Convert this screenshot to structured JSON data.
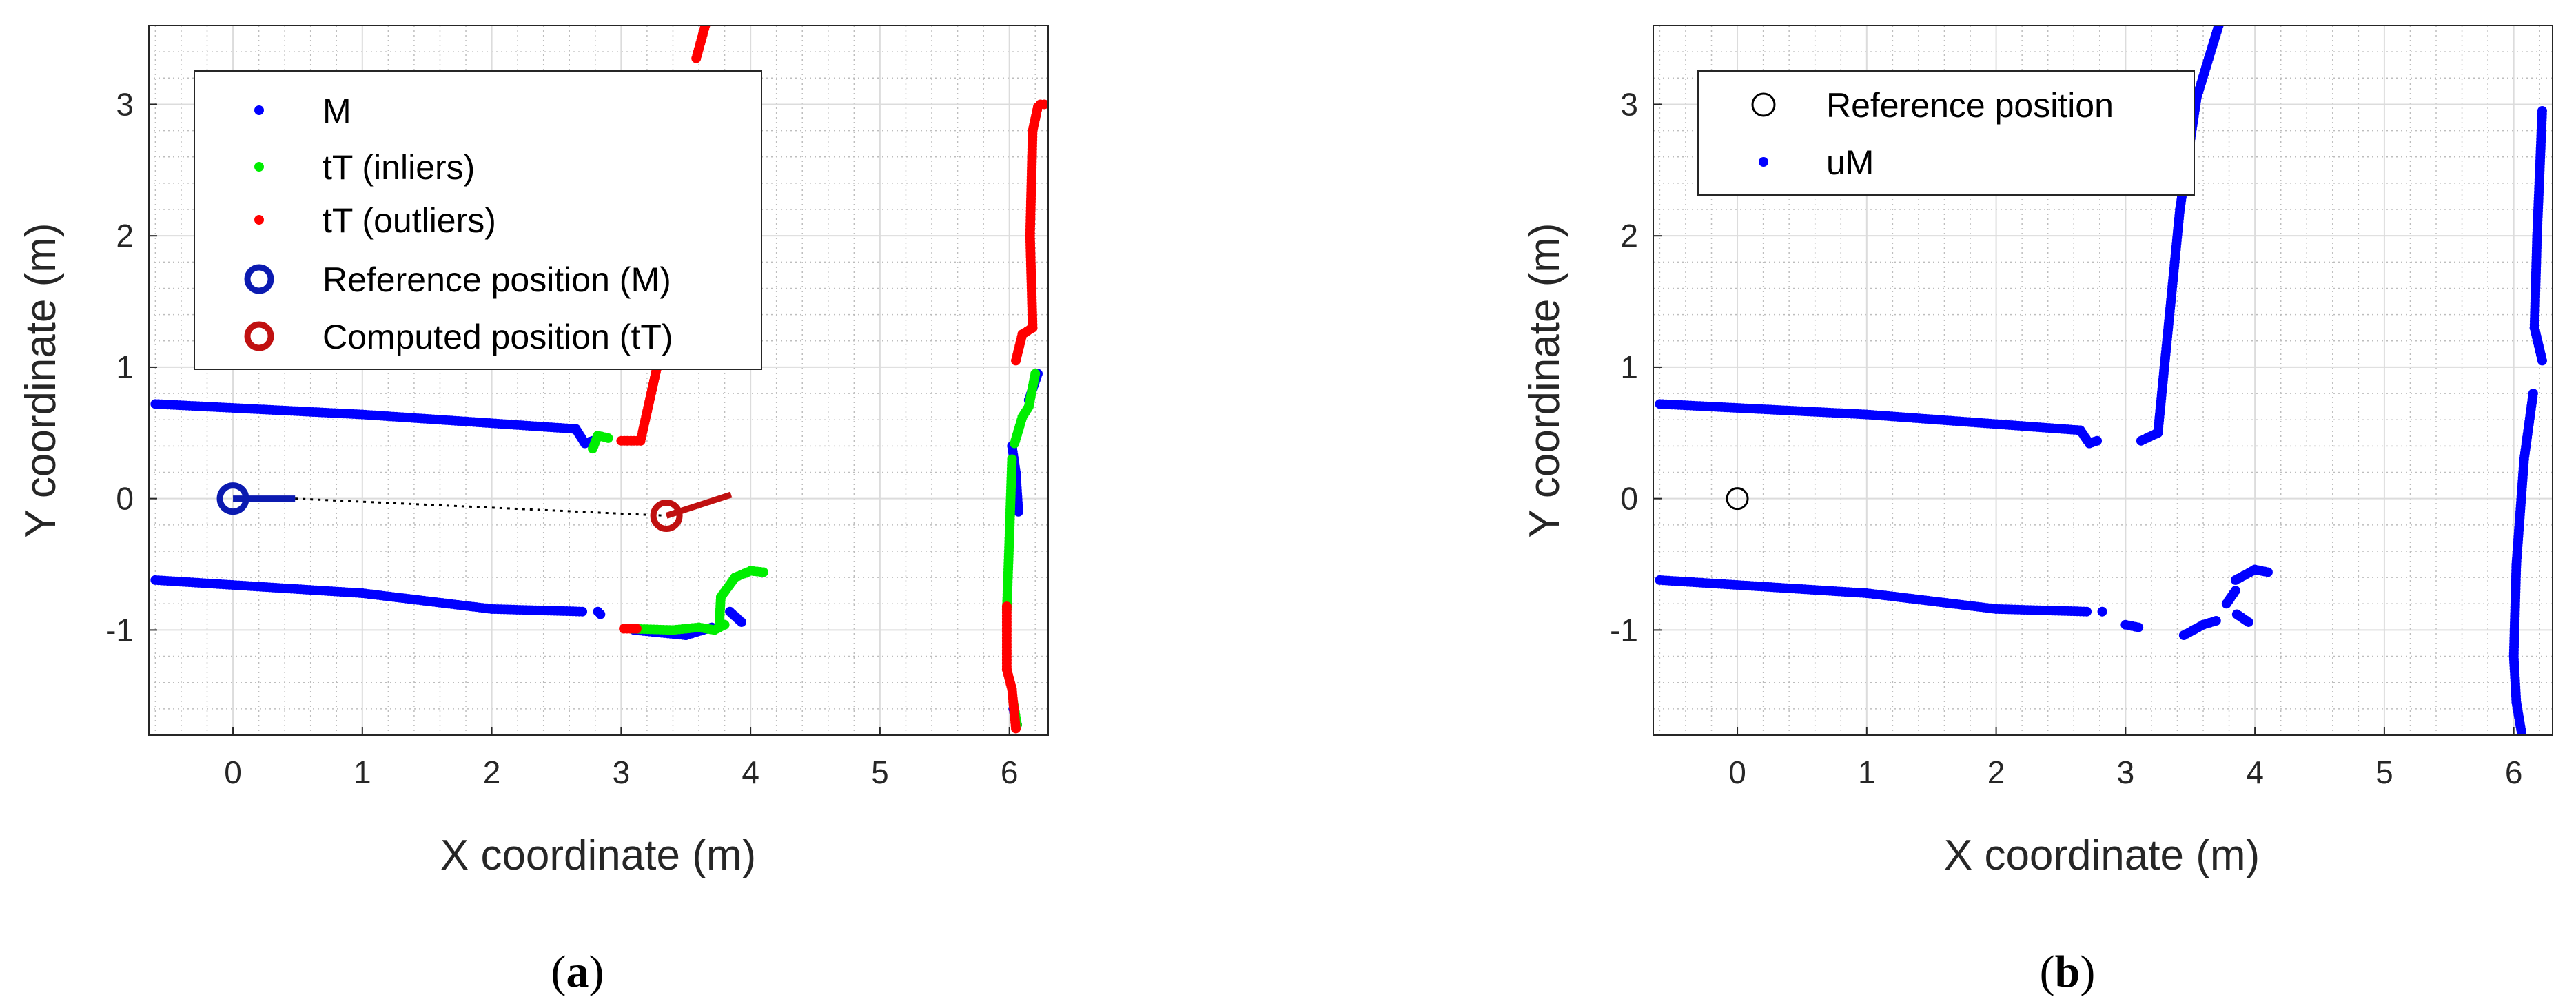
{
  "chart_data": [
    {
      "type": "scatter",
      "caption": "(a)",
      "caption_letter": "a",
      "xlabel": "X coordinate (m)",
      "ylabel": "Y coordinate (m)",
      "xlim": [
        -0.65,
        6.3
      ],
      "ylim": [
        -1.8,
        3.6
      ],
      "xticks": [
        0,
        1,
        2,
        3,
        4,
        5,
        6
      ],
      "yticks": [
        -1,
        0,
        1,
        2,
        3
      ],
      "grid": "on (major and minor)",
      "legend_position": "top-left",
      "legend": [
        "M",
        "tT (inliers)",
        "tT (outliers)",
        "Reference position (M)",
        "Computed position (tT)"
      ],
      "colors": {
        "M": "#0000ff",
        "inliers": "#00ee00",
        "outliers": "#ff0000",
        "reference": "#0b1ab0",
        "computed": "#c01010"
      },
      "series": [
        {
          "key": "M",
          "segments": [
            [
              [
                -0.6,
                0.72
              ],
              [
                1.0,
                0.64
              ],
              [
                2.65,
                0.53
              ],
              [
                2.72,
                0.42
              ],
              [
                2.78,
                0.44
              ]
            ],
            [
              [
                -0.6,
                -0.62
              ],
              [
                1.0,
                -0.72
              ],
              [
                2.0,
                -0.84
              ],
              [
                2.7,
                -0.86
              ]
            ],
            [
              [
                2.82,
                -0.86
              ],
              [
                2.84,
                -0.88
              ]
            ],
            [
              [
                3.1,
                -1.0
              ],
              [
                3.5,
                -1.04
              ],
              [
                3.7,
                -0.98
              ]
            ],
            [
              [
                3.84,
                -0.86
              ],
              [
                3.93,
                -0.94
              ]
            ],
            [
              [
                6.02,
                0.4
              ],
              [
                6.05,
                0.2
              ],
              [
                6.07,
                -0.1
              ]
            ],
            [
              [
                6.03,
                -1.6
              ],
              [
                6.06,
                -1.72
              ]
            ],
            [
              [
                6.15,
                0.75
              ],
              [
                6.22,
                0.95
              ]
            ]
          ]
        },
        {
          "key": "inliers",
          "segments": [
            [
              [
                2.78,
                0.38
              ],
              [
                2.82,
                0.48
              ],
              [
                2.9,
                0.46
              ]
            ],
            [
              [
                3.08,
                -0.99
              ],
              [
                3.4,
                -1.0
              ],
              [
                3.6,
                -0.98
              ],
              [
                3.72,
                -1.0
              ],
              [
                3.8,
                -0.96
              ]
            ],
            [
              [
                3.76,
                -0.93
              ],
              [
                3.77,
                -0.75
              ],
              [
                3.88,
                -0.6
              ],
              [
                4.0,
                -0.55
              ],
              [
                4.1,
                -0.56
              ]
            ],
            [
              [
                6.02,
                0.3
              ],
              [
                6.0,
                -0.3
              ],
              [
                5.98,
                -0.85
              ]
            ],
            [
              [
                6.04,
                0.42
              ],
              [
                6.1,
                0.62
              ],
              [
                6.15,
                0.7
              ],
              [
                6.2,
                0.95
              ]
            ],
            [
              [
                6.03,
                -1.55
              ],
              [
                6.06,
                -1.72
              ]
            ]
          ]
        },
        {
          "key": "outliers",
          "segments": [
            [
              [
                3.0,
                0.44
              ],
              [
                3.15,
                0.44
              ],
              [
                3.3,
                1.1
              ],
              [
                3.32,
                1.18
              ]
            ],
            [
              [
                3.58,
                3.35
              ],
              [
                3.65,
                3.6
              ]
            ],
            [
              [
                3.02,
                -0.99
              ],
              [
                3.12,
                -0.99
              ]
            ],
            [
              [
                5.98,
                -0.82
              ],
              [
                5.98,
                -1.3
              ],
              [
                6.02,
                -1.45
              ],
              [
                6.05,
                -1.75
              ]
            ],
            [
              [
                6.05,
                1.05
              ],
              [
                6.1,
                1.25
              ],
              [
                6.18,
                1.3
              ],
              [
                6.16,
                2.0
              ],
              [
                6.18,
                2.8
              ],
              [
                6.22,
                2.98
              ]
            ],
            [
              [
                6.24,
                3.0
              ],
              [
                6.27,
                3.0
              ]
            ]
          ]
        }
      ],
      "reference_position": {
        "x": 0,
        "y": 0,
        "heading_to": [
          0.48,
          0.0
        ]
      },
      "computed_position": {
        "x": 3.35,
        "y": -0.13,
        "heading_to": [
          3.85,
          0.03
        ]
      },
      "connector": [
        [
          0.48,
          0.0
        ],
        [
          3.35,
          -0.13
        ]
      ]
    },
    {
      "type": "scatter",
      "caption": "(b)",
      "caption_letter": "b",
      "xlabel": "X coordinate (m)",
      "ylabel": "Y coordinate (m)",
      "xlim": [
        -0.65,
        6.3
      ],
      "ylim": [
        -1.8,
        3.6
      ],
      "xticks": [
        0,
        1,
        2,
        3,
        4,
        5,
        6
      ],
      "yticks": [
        -1,
        0,
        1,
        2,
        3
      ],
      "grid": "on (major and minor)",
      "legend_position": "top-left",
      "legend": [
        "Reference position",
        "uM"
      ],
      "colors": {
        "uM": "#0000ff",
        "reference": "#000000"
      },
      "series": [
        {
          "key": "uM",
          "segments": [
            [
              [
                -0.6,
                0.72
              ],
              [
                1.0,
                0.64
              ],
              [
                2.65,
                0.52
              ],
              [
                2.72,
                0.42
              ],
              [
                2.78,
                0.44
              ]
            ],
            [
              [
                3.12,
                0.44
              ],
              [
                3.25,
                0.5
              ],
              [
                3.3,
                1.0
              ],
              [
                3.42,
                2.2
              ],
              [
                3.55,
                3.05
              ],
              [
                3.72,
                3.6
              ]
            ],
            [
              [
                -0.6,
                -0.62
              ],
              [
                1.0,
                -0.72
              ],
              [
                2.0,
                -0.84
              ],
              [
                2.7,
                -0.86
              ]
            ],
            [
              [
                2.82,
                -0.86
              ]
            ],
            [
              [
                3.0,
                -0.96
              ],
              [
                3.1,
                -0.98
              ]
            ],
            [
              [
                3.45,
                -1.04
              ],
              [
                3.6,
                -0.96
              ],
              [
                3.7,
                -0.93
              ]
            ],
            [
              [
                3.85,
                -0.62
              ],
              [
                4.0,
                -0.54
              ],
              [
                4.1,
                -0.56
              ]
            ],
            [
              [
                3.78,
                -0.8
              ],
              [
                3.85,
                -0.7
              ]
            ],
            [
              [
                3.86,
                -0.88
              ],
              [
                3.95,
                -0.94
              ]
            ],
            [
              [
                6.22,
                2.95
              ],
              [
                6.18,
                2.0
              ],
              [
                6.16,
                1.3
              ],
              [
                6.22,
                1.05
              ]
            ],
            [
              [
                6.15,
                0.8
              ],
              [
                6.08,
                0.3
              ],
              [
                6.02,
                -0.5
              ],
              [
                6.0,
                -1.2
              ],
              [
                6.02,
                -1.55
              ],
              [
                6.06,
                -1.78
              ]
            ]
          ]
        }
      ],
      "reference_position": {
        "x": 0,
        "y": 0
      }
    }
  ]
}
